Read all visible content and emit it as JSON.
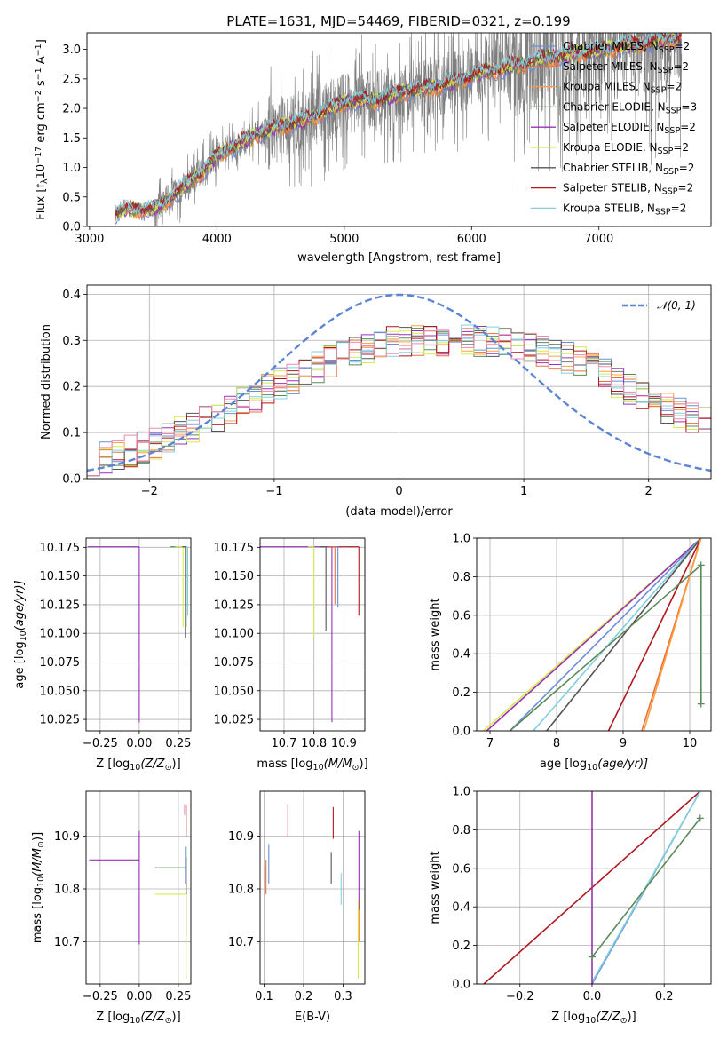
{
  "title": "PLATE=1631, MJD=54469, FIBERID=0321, z=0.199",
  "palette": {
    "gray": "#7f7f7f",
    "orange": "#ff7f0e",
    "blue": "#6b8ed6",
    "purple": "#9b30b6",
    "lime": "#d4ec4c",
    "green": "#5b8a5b",
    "darkgray": "#555555",
    "red": "#b0171f",
    "cyan": "#80d0dc",
    "pink": "#ee88aa",
    "coral": "#e8703a"
  },
  "chart_data": [
    {
      "type": "line",
      "panel": "spectrum",
      "xlabel": "wavelength [Angstrom, rest frame]",
      "ylabel": "Flux [f",
      "ylabel_sub": "λ",
      "ylabel_mid": "10",
      "ylabel_sup": "−17",
      "ylabel_tail": " erg cm",
      "ylabel_sup2": "−2",
      "ylabel_tail2": " s",
      "ylabel_sup3": "−1",
      "ylabel_tail3": " A",
      "ylabel_sup4": "−1",
      "ylabel_end": "]",
      "xlim": [
        2980,
        7880
      ],
      "ylim": [
        0,
        3.28
      ],
      "xticks": [
        "3000",
        "4000",
        "5000",
        "6000",
        "7000"
      ],
      "xtick_values": [
        3000,
        4000,
        5000,
        6000,
        7000
      ],
      "yticks": [
        "0.0",
        "0.5",
        "1.0",
        "1.5",
        "2.0",
        "2.5",
        "3.0"
      ],
      "ytick_values": [
        0,
        0.5,
        1.0,
        1.5,
        2.0,
        2.5,
        3.0
      ],
      "legend_placement": "right",
      "legend": [
        {
          "name": "Chabrier MILES, N",
          "sub": "SSP",
          "tail": "=2",
          "color": "#6b8ed6"
        },
        {
          "name": "Salpeter MILES, N",
          "sub": "SSP",
          "tail": "=2",
          "color": "#e8703a"
        },
        {
          "name": "Kroupa MILES, N",
          "sub": "SSP",
          "tail": "=2",
          "color": "#ffa040"
        },
        {
          "name": "Chabrier ELODIE, N",
          "sub": "SSP",
          "tail": "=3",
          "color": "#5b8a5b"
        },
        {
          "name": "Salpeter ELODIE, N",
          "sub": "SSP",
          "tail": "=2",
          "color": "#9b30b6"
        },
        {
          "name": "Kroupa ELODIE, N",
          "sub": "SSP",
          "tail": "=2",
          "color": "#d4ec4c"
        },
        {
          "name": "Chabrier STELIB, N",
          "sub": "SSP",
          "tail": "=2",
          "color": "#555555"
        },
        {
          "name": "Salpeter STELIB, N",
          "sub": "SSP",
          "tail": "=2",
          "color": "#b0171f"
        },
        {
          "name": "Kroupa STELIB, N",
          "sub": "SSP",
          "tail": "=2",
          "color": "#80d0dc"
        }
      ],
      "data_start": 3200,
      "data_end": 7650,
      "continuum": {
        "x": [
          3200,
          3300,
          3500,
          3700,
          3900,
          4000,
          4300,
          4500,
          4700,
          4900,
          5000,
          5300,
          5500,
          5800,
          6000,
          6300,
          6600,
          6900,
          7200,
          7500,
          7650
        ],
        "y": [
          0.22,
          0.3,
          0.28,
          0.6,
          0.95,
          1.2,
          1.55,
          1.7,
          1.8,
          2.0,
          2.1,
          2.15,
          2.3,
          2.4,
          2.55,
          2.7,
          2.85,
          2.95,
          3.05,
          3.15,
          3.2
        ]
      }
    },
    {
      "type": "line",
      "panel": "residual-distribution",
      "xlabel": "(data-model)/error",
      "ylabel": "Normed distribution",
      "xlim": [
        -2.5,
        2.5
      ],
      "ylim": [
        0,
        0.42
      ],
      "xticks": [
        "−2",
        "−1",
        "0",
        "1",
        "2"
      ],
      "xtick_values": [
        -2,
        -1,
        0,
        1,
        2
      ],
      "yticks": [
        "0.0",
        "0.1",
        "0.2",
        "0.3",
        "0.4"
      ],
      "ytick_values": [
        0,
        0.1,
        0.2,
        0.3,
        0.4
      ],
      "grid": true,
      "legend_placement": "top-right",
      "legend": [
        {
          "name": "𝒩(0, 1)",
          "color": "#5b84d6",
          "style": "dashed"
        }
      ],
      "bins": 50,
      "base_profile": {
        "x": [
          -2.5,
          -2.0,
          -1.5,
          -1.0,
          -0.5,
          0.0,
          0.5,
          1.0,
          1.5,
          2.0,
          2.5
        ],
        "y": [
          0.035,
          0.07,
          0.13,
          0.2,
          0.26,
          0.3,
          0.3,
          0.29,
          0.25,
          0.17,
          0.12
        ]
      }
    },
    {
      "type": "scatter",
      "panel": "age-vs-metallicity",
      "xlabel": "Z [log",
      "xlabel_sub": "10",
      "xlabel_tail": "(Z/Z",
      "xlabel_sub2": "⊙",
      "xlabel_end": ")]",
      "ylabel": "age  [log",
      "ylabel_sub": "10",
      "ylabel_tail": "(age/yr)]",
      "xlim": [
        -0.34,
        0.33
      ],
      "ylim": [
        10.015,
        10.183
      ],
      "xticks": [
        "−0.25",
        "0.00",
        "0.25"
      ],
      "xtick_values": [
        -0.25,
        0.0,
        0.25
      ],
      "yticks": [
        "10.025",
        "10.050",
        "10.075",
        "10.100",
        "10.125",
        "10.150",
        "10.175"
      ],
      "ytick_values": [
        10.025,
        10.05,
        10.075,
        10.1,
        10.125,
        10.15,
        10.175
      ],
      "grid": true,
      "points": [
        {
          "x": 0.0,
          "y": 10.1755,
          "xerr": [
            0.33,
            0.0
          ],
          "yerr": [
            0.153,
            0.0
          ],
          "color": "#9b30b6"
        },
        {
          "x": 0.3,
          "y": 10.1755,
          "xerr": [
            0.1,
            0.0
          ],
          "yerr": [
            0.07,
            0.0
          ],
          "color": "#5b8a5b"
        },
        {
          "x": 0.28,
          "y": 10.1755,
          "xerr": [
            0.05,
            0.0
          ],
          "yerr": [
            0.07,
            0.0
          ],
          "color": "#d4ec4c"
        },
        {
          "x": 0.31,
          "y": 10.1755,
          "xerr": [
            0.02,
            0.0
          ],
          "yerr": [
            0.06,
            0.0
          ],
          "color": "#80d0dc"
        },
        {
          "x": 0.295,
          "y": 10.1755,
          "xerr": [
            0.02,
            0.0
          ],
          "yerr": [
            0.08,
            0.0
          ],
          "color": "#555555"
        }
      ]
    },
    {
      "type": "scatter",
      "panel": "age-vs-mass",
      "xlabel": "mass [log",
      "xlabel_sub": "10",
      "xlabel_tail": "(M/M",
      "xlabel_sub2": "⊙",
      "xlabel_end": ")]",
      "xlim": [
        10.62,
        10.97
      ],
      "ylim": [
        10.015,
        10.183
      ],
      "xticks": [
        "10.7",
        "10.8",
        "10.9"
      ],
      "xtick_values": [
        10.7,
        10.8,
        10.9
      ],
      "yticks": [
        "10.025",
        "10.050",
        "10.075",
        "10.100",
        "10.125",
        "10.150",
        "10.175"
      ],
      "ytick_values": [
        10.025,
        10.05,
        10.075,
        10.1,
        10.125,
        10.15,
        10.175
      ],
      "grid": true,
      "points": [
        {
          "x": 10.86,
          "y": 10.1755,
          "xerr": [
            0.24,
            0.0
          ],
          "yerr": [
            0.153,
            0.0
          ],
          "color": "#9b30b6"
        },
        {
          "x": 10.95,
          "y": 10.1755,
          "xerr": [
            0.1,
            0.0
          ],
          "yerr": [
            0.06,
            0.0
          ],
          "color": "#b0171f"
        },
        {
          "x": 10.8,
          "y": 10.1755,
          "xerr": [
            0.02,
            0.0
          ],
          "yerr": [
            0.079,
            0.0
          ],
          "color": "#d4ec4c"
        },
        {
          "x": 10.84,
          "y": 10.1755,
          "xerr": [
            0.02,
            0.0
          ],
          "yerr": [
            0.073,
            0.0
          ],
          "color": "#555555"
        },
        {
          "x": 10.88,
          "y": 10.1755,
          "xerr": [
            0.02,
            0.0
          ],
          "yerr": [
            0.053,
            0.0
          ],
          "color": "#6b8ed6"
        },
        {
          "x": 10.87,
          "y": 10.1755,
          "xerr": [
            0.02,
            0.0
          ],
          "yerr": [
            0.05,
            0.0
          ],
          "color": "#e8703a"
        }
      ]
    },
    {
      "type": "line",
      "panel": "mass-weight-vs-age",
      "xlabel": "age  [log",
      "xlabel_sub": "10",
      "xlabel_tail": "(age/yr)]",
      "ylabel": "mass weight",
      "xlim": [
        6.8,
        10.32
      ],
      "ylim": [
        0,
        1.0
      ],
      "xticks": [
        "7",
        "8",
        "9",
        "10"
      ],
      "xtick_values": [
        7,
        8,
        9,
        10
      ],
      "yticks": [
        "0.0",
        "0.2",
        "0.4",
        "0.6",
        "0.8",
        "1.0"
      ],
      "ytick_values": [
        0,
        0.2,
        0.4,
        0.6,
        0.8,
        1.0
      ],
      "grid": true,
      "series": [
        {
          "color": "#d4ec4c",
          "x": [
            6.9,
            10.17
          ],
          "y": [
            0.0,
            1.0
          ]
        },
        {
          "color": "#9b30b6",
          "x": [
            6.95,
            10.17
          ],
          "y": [
            0.0,
            1.0
          ]
        },
        {
          "color": "#6b8ed6",
          "x": [
            7.3,
            10.17
          ],
          "y": [
            0.0,
            1.0
          ]
        },
        {
          "color": "#80d0dc",
          "x": [
            7.65,
            10.17
          ],
          "y": [
            0.0,
            1.0
          ]
        },
        {
          "color": "#555555",
          "x": [
            7.85,
            10.17
          ],
          "y": [
            0.0,
            1.0
          ]
        },
        {
          "color": "#b0171f",
          "x": [
            8.78,
            10.17
          ],
          "y": [
            0.0,
            1.0
          ]
        },
        {
          "color": "#e8703a",
          "x": [
            9.28,
            10.17
          ],
          "y": [
            0.0,
            1.0
          ]
        },
        {
          "color": "#ffa040",
          "x": [
            9.31,
            10.17
          ],
          "y": [
            0.0,
            1.0
          ]
        },
        {
          "color": "#5b8a5b",
          "x": [
            7.3,
            10.17
          ],
          "y": [
            0.0,
            0.86
          ]
        },
        {
          "color": "#5b8a5b",
          "x": [
            10.17,
            10.17
          ],
          "y": [
            0.14,
            0.86
          ],
          "markers": true
        }
      ]
    },
    {
      "type": "scatter",
      "panel": "mass-vs-metallicity",
      "xlabel": "Z [log",
      "xlabel_sub": "10",
      "xlabel_tail": "(Z/Z",
      "xlabel_sub2": "⊙",
      "xlabel_end": ")]",
      "ylabel": "mass [log",
      "ylabel_sub": "10",
      "ylabel_tail": "(M/M",
      "ylabel_sub2": "⊙",
      "ylabel_end": ")]",
      "xlim": [
        -0.34,
        0.33
      ],
      "ylim": [
        10.62,
        10.985
      ],
      "xticks": [
        "−0.25",
        "0.00",
        "0.25"
      ],
      "xtick_values": [
        -0.25,
        0.0,
        0.25
      ],
      "yticks": [
        "10.7",
        "10.8",
        "10.9"
      ],
      "ytick_values": [
        10.7,
        10.8,
        10.9
      ],
      "grid": true,
      "points": [
        {
          "x": 0.0,
          "y": 10.855,
          "xerr": [
            0.32,
            0.0
          ],
          "yerr": [
            0.16,
            0.055
          ],
          "color": "#9b30b6"
        },
        {
          "x": 0.3,
          "y": 10.84,
          "xerr": [
            0.2,
            0.0
          ],
          "yerr": [
            0.13,
            0.04
          ],
          "color": "#5b8a5b"
        },
        {
          "x": 0.3,
          "y": 10.79,
          "xerr": [
            0.2,
            0.0
          ],
          "yerr": [
            0.16,
            0.0
          ],
          "color": "#d4ec4c"
        },
        {
          "x": 0.3,
          "y": 10.93,
          "xerr": [
            0.0,
            0.0
          ],
          "yerr": [
            0.03,
            0.03
          ],
          "color": "#b0171f"
        },
        {
          "x": 0.29,
          "y": 10.95,
          "xerr": [
            0.0,
            0.0
          ],
          "yerr": [
            0.01,
            0.01
          ],
          "color": "#ee88aa"
        },
        {
          "x": 0.295,
          "y": 10.85,
          "xerr": [
            0.0,
            0.0
          ],
          "yerr": [
            0.04,
            0.03
          ],
          "color": "#6b8ed6"
        },
        {
          "x": 0.3,
          "y": 10.83,
          "xerr": [
            0.0,
            0.0
          ],
          "yerr": [
            0.04,
            0.03
          ],
          "color": "#555555"
        }
      ]
    },
    {
      "type": "scatter",
      "panel": "mass-vs-reddening",
      "xlabel": "E(B-V)",
      "xlim": [
        0.09,
        0.355
      ],
      "ylim": [
        10.62,
        10.985
      ],
      "xticks": [
        "0.1",
        "0.2",
        "0.3"
      ],
      "xtick_values": [
        0.1,
        0.2,
        0.3
      ],
      "yticks": [
        "10.7",
        "10.8",
        "10.9"
      ],
      "ytick_values": [
        10.7,
        10.8,
        10.9
      ],
      "grid": true,
      "points": [
        {
          "x": 0.16,
          "y": 10.93,
          "yerr": [
            0.03,
            0.03
          ],
          "color": "#ee88aa"
        },
        {
          "x": 0.275,
          "y": 10.925,
          "yerr": [
            0.03,
            0.03
          ],
          "color": "#b0171f"
        },
        {
          "x": 0.27,
          "y": 10.84,
          "yerr": [
            0.03,
            0.03
          ],
          "color": "#555555"
        },
        {
          "x": 0.105,
          "y": 10.825,
          "yerr": [
            0.035,
            0.03
          ],
          "color": "#e8703a"
        },
        {
          "x": 0.112,
          "y": 10.845,
          "yerr": [
            0.035,
            0.04
          ],
          "color": "#6b8ed6"
        },
        {
          "x": 0.295,
          "y": 10.8,
          "yerr": [
            0.03,
            0.03
          ],
          "color": "#80d0dc"
        },
        {
          "x": 0.34,
          "y": 10.85,
          "yerr": [
            0.15,
            0.06
          ],
          "color": "#9b30b6"
        },
        {
          "x": 0.338,
          "y": 10.78,
          "yerr": [
            0.15,
            0.0
          ],
          "color": "#d4ec4c"
        },
        {
          "x": 0.34,
          "y": 10.76,
          "yerr": [
            0.06,
            0.0
          ],
          "color": "#ffa040"
        }
      ]
    },
    {
      "type": "line",
      "panel": "mass-weight-vs-metallicity",
      "xlabel": "Z [log",
      "xlabel_sub": "10",
      "xlabel_tail": "(Z/Z",
      "xlabel_sub2": "⊙",
      "xlabel_end": ")]",
      "ylabel": "mass weight",
      "xlim": [
        -0.32,
        0.33
      ],
      "ylim": [
        0,
        1.0
      ],
      "xticks": [
        "−0.2",
        "0.0",
        "0.2"
      ],
      "xtick_values": [
        -0.2,
        0.0,
        0.2
      ],
      "yticks": [
        "0.0",
        "0.2",
        "0.4",
        "0.6",
        "0.8",
        "1.0"
      ],
      "ytick_values": [
        0,
        0.2,
        0.4,
        0.6,
        0.8,
        1.0
      ],
      "grid": true,
      "series": [
        {
          "color": "#b0171f",
          "x": [
            -0.3,
            0.3
          ],
          "y": [
            0.0,
            1.0
          ]
        },
        {
          "color": "#6b8ed6",
          "x": [
            0.0,
            0.3
          ],
          "y": [
            0.0,
            1.0
          ]
        },
        {
          "color": "#80d0dc",
          "x": [
            0.0,
            0.3
          ],
          "y": [
            0.01,
            1.0
          ]
        },
        {
          "color": "#5b8a5b",
          "x": [
            0.0,
            0.3
          ],
          "y": [
            0.14,
            0.86
          ],
          "markers": true
        },
        {
          "color": "#9b30b6",
          "x": [
            0.0,
            0.0
          ],
          "y": [
            0.0,
            1.0
          ]
        }
      ]
    }
  ]
}
